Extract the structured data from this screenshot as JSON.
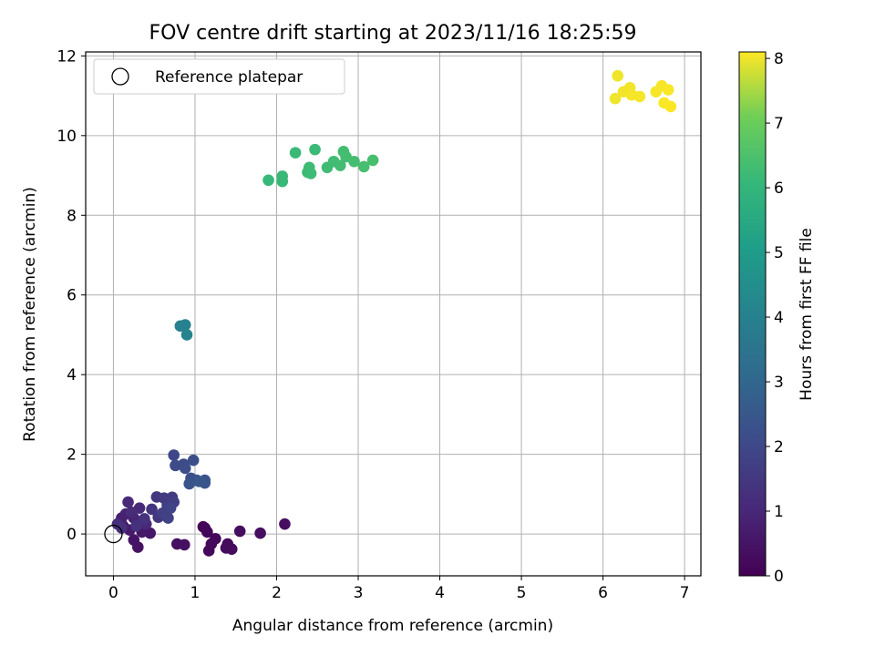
{
  "chart_data": {
    "type": "scatter",
    "title": "FOV centre drift starting at 2023/11/16 18:25:59",
    "xlabel": "Angular distance from reference (arcmin)",
    "ylabel": "Rotation from reference (arcmin)",
    "xlim": [
      -0.34,
      7.2
    ],
    "ylim": [
      -1.05,
      12.1
    ],
    "xticks": [
      0,
      1,
      2,
      3,
      4,
      5,
      6,
      7
    ],
    "yticks": [
      0,
      2,
      4,
      6,
      8,
      10,
      12
    ],
    "grid": true,
    "legend": {
      "position": "top-left",
      "entries": [
        "Reference platepar"
      ]
    },
    "reference_point": {
      "x": 0,
      "y": 0
    },
    "colorbar": {
      "label": "Hours from first FF file",
      "colormap": "viridis",
      "range": [
        0,
        8.1
      ],
      "ticks": [
        0,
        1,
        2,
        3,
        4,
        5,
        6,
        7,
        8
      ]
    },
    "points": [
      {
        "x": 1.1,
        "y": 0.18,
        "h": 0.05
      },
      {
        "x": 1.12,
        "y": 0.15,
        "h": 0.08
      },
      {
        "x": 1.15,
        "y": 0.05,
        "h": 0.12
      },
      {
        "x": 1.25,
        "y": -0.12,
        "h": 0.15
      },
      {
        "x": 1.2,
        "y": -0.25,
        "h": 0.18
      },
      {
        "x": 1.17,
        "y": -0.42,
        "h": 0.2
      },
      {
        "x": 1.4,
        "y": -0.25,
        "h": 0.22
      },
      {
        "x": 1.38,
        "y": -0.35,
        "h": 0.25
      },
      {
        "x": 1.45,
        "y": -0.38,
        "h": 0.28
      },
      {
        "x": 1.55,
        "y": 0.07,
        "h": 0.3
      },
      {
        "x": 1.8,
        "y": 0.02,
        "h": 0.33
      },
      {
        "x": 2.1,
        "y": 0.25,
        "h": 0.35
      },
      {
        "x": 0.78,
        "y": -0.25,
        "h": 0.38
      },
      {
        "x": 0.87,
        "y": -0.27,
        "h": 0.4
      },
      {
        "x": 0.3,
        "y": -0.33,
        "h": 0.45
      },
      {
        "x": 0.25,
        "y": -0.15,
        "h": 0.5
      },
      {
        "x": 0.45,
        "y": 0.02,
        "h": 0.55
      },
      {
        "x": 0.35,
        "y": 0.05,
        "h": 0.6
      },
      {
        "x": 0.2,
        "y": 0.1,
        "h": 0.65
      },
      {
        "x": 0.12,
        "y": 0.2,
        "h": 0.7
      },
      {
        "x": 0.08,
        "y": 0.3,
        "h": 0.75
      },
      {
        "x": 0.1,
        "y": 0.4,
        "h": 0.8
      },
      {
        "x": 0.15,
        "y": 0.5,
        "h": 0.85
      },
      {
        "x": 0.25,
        "y": 0.4,
        "h": 0.9
      },
      {
        "x": 0.3,
        "y": 0.3,
        "h": 0.95
      },
      {
        "x": 0.4,
        "y": 0.25,
        "h": 1.0
      },
      {
        "x": 0.18,
        "y": 0.8,
        "h": 1.05
      },
      {
        "x": 0.32,
        "y": 0.65,
        "h": 1.1
      },
      {
        "x": 0.22,
        "y": 0.55,
        "h": 1.15
      },
      {
        "x": 0.05,
        "y": 0.25,
        "h": 1.2
      },
      {
        "x": 0.1,
        "y": 0.15,
        "h": 1.25
      },
      {
        "x": 0.28,
        "y": 0.2,
        "h": 1.3
      },
      {
        "x": 0.38,
        "y": 0.38,
        "h": 1.35
      },
      {
        "x": 0.47,
        "y": 0.62,
        "h": 1.4
      },
      {
        "x": 0.55,
        "y": 0.42,
        "h": 1.45
      },
      {
        "x": 0.53,
        "y": 0.93,
        "h": 1.5
      },
      {
        "x": 0.62,
        "y": 0.9,
        "h": 1.55
      },
      {
        "x": 0.72,
        "y": 0.92,
        "h": 1.6
      },
      {
        "x": 0.66,
        "y": 0.72,
        "h": 1.65
      },
      {
        "x": 0.74,
        "y": 0.8,
        "h": 1.7
      },
      {
        "x": 0.6,
        "y": 0.52,
        "h": 1.75
      },
      {
        "x": 0.67,
        "y": 0.4,
        "h": 1.8
      },
      {
        "x": 0.7,
        "y": 0.65,
        "h": 1.85
      },
      {
        "x": 0.74,
        "y": 1.98,
        "h": 2.0
      },
      {
        "x": 0.76,
        "y": 1.72,
        "h": 2.05
      },
      {
        "x": 0.86,
        "y": 1.75,
        "h": 2.1
      },
      {
        "x": 0.88,
        "y": 1.65,
        "h": 2.15
      },
      {
        "x": 0.98,
        "y": 1.85,
        "h": 2.2
      },
      {
        "x": 0.95,
        "y": 1.4,
        "h": 2.25
      },
      {
        "x": 1.02,
        "y": 1.35,
        "h": 2.3
      },
      {
        "x": 0.93,
        "y": 1.26,
        "h": 2.35
      },
      {
        "x": 1.12,
        "y": 1.35,
        "h": 2.4
      },
      {
        "x": 1.12,
        "y": 1.28,
        "h": 2.45
      },
      {
        "x": 1.05,
        "y": 1.32,
        "h": 2.5
      },
      {
        "x": 0.82,
        "y": 5.22,
        "h": 4.0
      },
      {
        "x": 0.88,
        "y": 5.25,
        "h": 4.05
      },
      {
        "x": 0.9,
        "y": 5.0,
        "h": 4.1
      },
      {
        "x": 1.9,
        "y": 8.88,
        "h": 6.1
      },
      {
        "x": 2.07,
        "y": 8.85,
        "h": 6.12
      },
      {
        "x": 2.07,
        "y": 8.98,
        "h": 6.14
      },
      {
        "x": 2.23,
        "y": 9.57,
        "h": 6.16
      },
      {
        "x": 2.47,
        "y": 9.65,
        "h": 6.18
      },
      {
        "x": 2.38,
        "y": 9.08,
        "h": 6.2
      },
      {
        "x": 2.4,
        "y": 9.2,
        "h": 6.22
      },
      {
        "x": 2.42,
        "y": 9.05,
        "h": 6.24
      },
      {
        "x": 2.62,
        "y": 9.2,
        "h": 6.26
      },
      {
        "x": 2.7,
        "y": 9.35,
        "h": 6.28
      },
      {
        "x": 2.78,
        "y": 9.25,
        "h": 6.3
      },
      {
        "x": 2.82,
        "y": 9.6,
        "h": 6.32
      },
      {
        "x": 2.85,
        "y": 9.47,
        "h": 6.34
      },
      {
        "x": 2.95,
        "y": 9.35,
        "h": 6.36
      },
      {
        "x": 3.07,
        "y": 9.22,
        "h": 6.38
      },
      {
        "x": 3.18,
        "y": 9.38,
        "h": 6.4
      },
      {
        "x": 6.18,
        "y": 11.5,
        "h": 8.0
      },
      {
        "x": 6.15,
        "y": 10.93,
        "h": 8.0
      },
      {
        "x": 6.25,
        "y": 11.1,
        "h": 8.02
      },
      {
        "x": 6.33,
        "y": 11.2,
        "h": 8.02
      },
      {
        "x": 6.35,
        "y": 11.02,
        "h": 8.04
      },
      {
        "x": 6.45,
        "y": 10.98,
        "h": 8.04
      },
      {
        "x": 6.65,
        "y": 11.1,
        "h": 8.06
      },
      {
        "x": 6.72,
        "y": 11.25,
        "h": 8.06
      },
      {
        "x": 6.75,
        "y": 10.82,
        "h": 8.08
      },
      {
        "x": 6.8,
        "y": 11.15,
        "h": 8.08
      },
      {
        "x": 6.83,
        "y": 10.73,
        "h": 8.1
      }
    ]
  }
}
